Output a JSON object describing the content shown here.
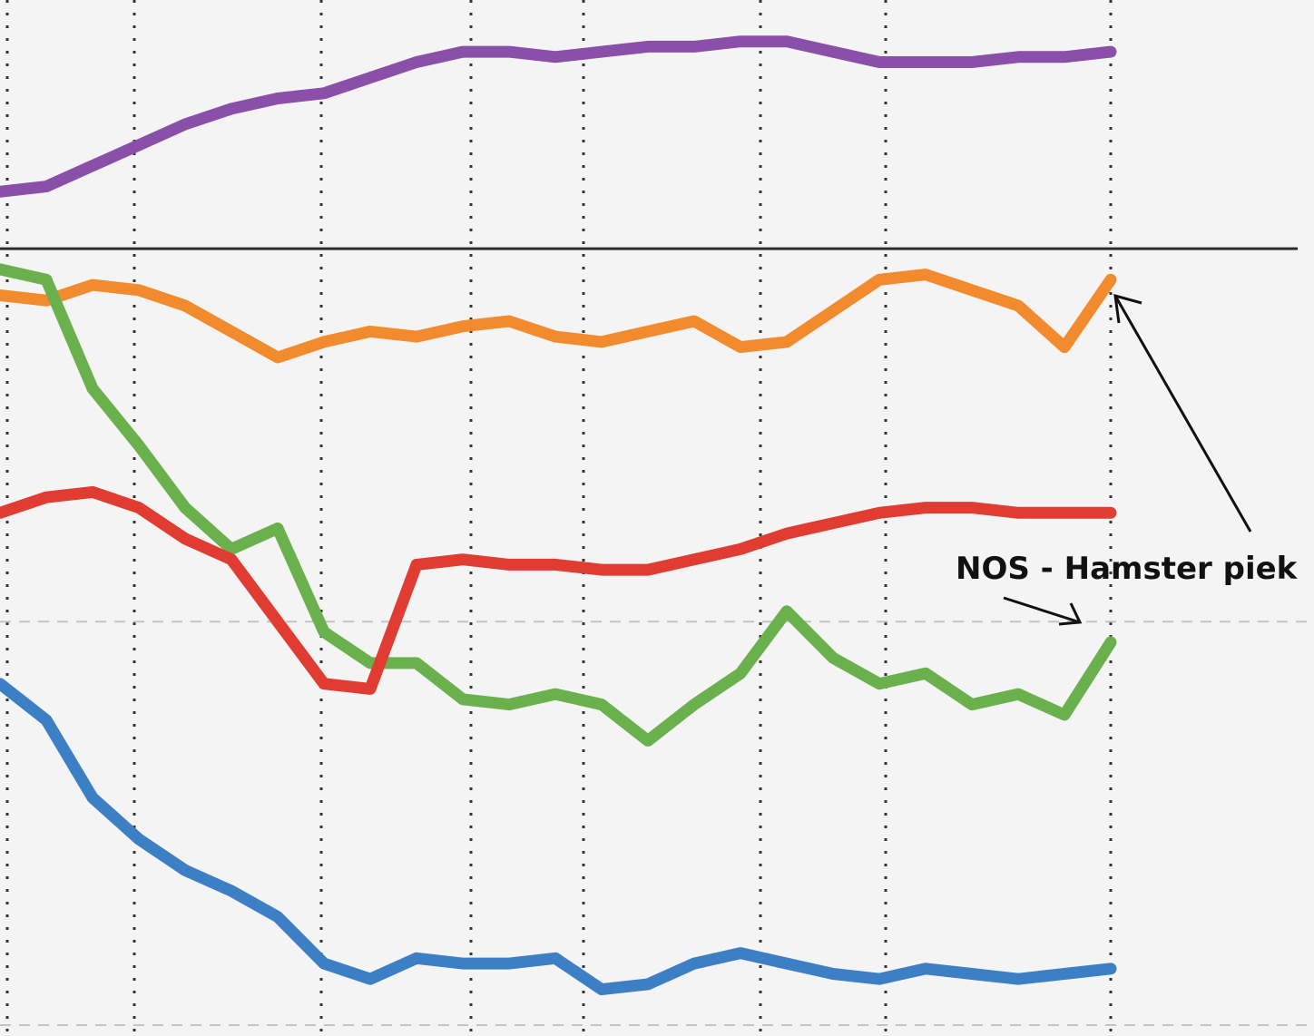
{
  "chart_data": {
    "type": "line",
    "title": "",
    "xlabel": "",
    "ylabel": "",
    "xlim": [
      0,
      12
    ],
    "ylim": [
      0,
      100
    ],
    "grid": true,
    "legend": "none",
    "divider_y": 76,
    "dashed_reference_y": 40,
    "x": [
      0,
      0.5,
      1,
      1.5,
      2,
      2.5,
      3,
      3.5,
      4,
      4.5,
      5,
      5.5,
      6,
      6.5,
      7,
      7.5,
      8,
      8.5,
      9,
      9.5,
      10,
      10.5,
      11,
      11.5,
      12
    ],
    "series": [
      {
        "name": "purple",
        "color": "#8a4fa8",
        "values": [
          81.5,
          82,
          84,
          86,
          88,
          89.5,
          90.5,
          91,
          92.5,
          94,
          95,
          95,
          94.5,
          95,
          95.5,
          95.5,
          96,
          96,
          95,
          94,
          94,
          94,
          94.5,
          94.5,
          95
        ]
      },
      {
        "name": "orange",
        "color": "#f28b2e",
        "values": [
          71.5,
          71,
          72.5,
          72,
          70.5,
          68,
          65.5,
          67,
          68,
          67.5,
          68.5,
          69,
          67.5,
          67,
          68,
          69,
          66.5,
          67,
          70,
          73,
          73.5,
          72,
          70.5,
          66.5,
          73
        ]
      },
      {
        "name": "green",
        "color": "#6ab04c",
        "values": [
          74,
          73,
          62.5,
          57,
          51,
          47,
          49,
          39,
          36,
          36,
          32.5,
          32,
          33,
          32,
          28.5,
          32,
          35,
          41,
          36.5,
          34,
          35,
          32,
          33,
          31,
          38
        ]
      },
      {
        "name": "red",
        "color": "#e03c31",
        "values": [
          50.5,
          52,
          52.5,
          51,
          48,
          46,
          40,
          34,
          33.5,
          45.5,
          46,
          45.5,
          45.5,
          45,
          45,
          46,
          47,
          48.5,
          49.5,
          50.5,
          51,
          51,
          50.5,
          50.5,
          50.5
        ]
      },
      {
        "name": "blue",
        "color": "#3d7fc4",
        "values": [
          34,
          30.5,
          23,
          19,
          16,
          14,
          11.5,
          7,
          5.5,
          7.5,
          7,
          7,
          7.5,
          4.5,
          5,
          7,
          8,
          7,
          6,
          5.5,
          6.5,
          6,
          5.5,
          6,
          6.5
        ]
      }
    ],
    "annotations": [
      {
        "text": "NOS - Hamster piek"
      }
    ]
  }
}
